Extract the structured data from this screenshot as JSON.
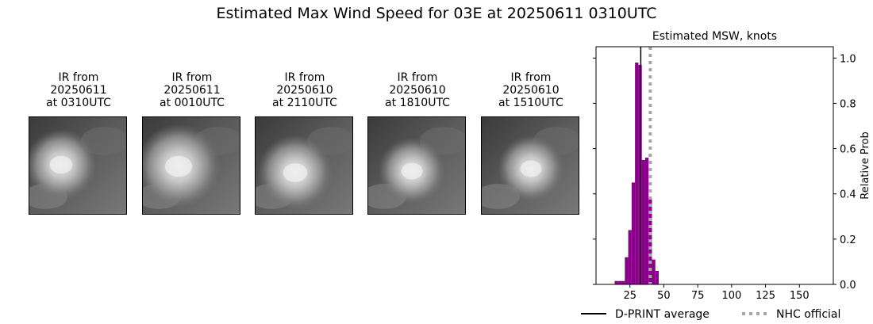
{
  "title": "Estimated Max Wind Speed for 03E at 20250611 0310UTC",
  "ir_panels": [
    {
      "line1": "IR from",
      "line2": "20250611",
      "line3": "at 0310UTC"
    },
    {
      "line1": "IR from",
      "line2": "20250611",
      "line3": "at 0010UTC"
    },
    {
      "line1": "IR from",
      "line2": "20250610",
      "line3": "at 2110UTC"
    },
    {
      "line1": "IR from",
      "line2": "20250610",
      "line3": "at 1810UTC"
    },
    {
      "line1": "IR from",
      "line2": "20250610",
      "line3": "at 1510UTC"
    }
  ],
  "chart_data": {
    "type": "bar",
    "title": "Estimated MSW, knots",
    "ylabel": "Relative Prob",
    "xlim": [
      0,
      175
    ],
    "ylim": [
      0,
      1.05
    ],
    "xticks": [
      25,
      50,
      75,
      100,
      125,
      150
    ],
    "yticks": [
      0.0,
      0.2,
      0.4,
      0.6,
      0.8,
      1.0
    ],
    "ytick_labels": [
      "0.0",
      "0.2",
      "0.4",
      "0.6",
      "0.8",
      "1.0"
    ],
    "yaxis_position": "right",
    "bar_color": "#8b008b",
    "bin_width": 2.5,
    "bins": [
      {
        "x": 15,
        "y": 0.015
      },
      {
        "x": 17.5,
        "y": 0.015
      },
      {
        "x": 20,
        "y": 0.015
      },
      {
        "x": 22.5,
        "y": 0.12
      },
      {
        "x": 25,
        "y": 0.24
      },
      {
        "x": 27.5,
        "y": 0.45
      },
      {
        "x": 30,
        "y": 0.98
      },
      {
        "x": 32.5,
        "y": 0.97
      },
      {
        "x": 35,
        "y": 0.55
      },
      {
        "x": 37.5,
        "y": 0.56
      },
      {
        "x": 40,
        "y": 0.38
      },
      {
        "x": 42.5,
        "y": 0.11
      },
      {
        "x": 45,
        "y": 0.06
      }
    ],
    "dprint_average": 33,
    "nhc_official": 40,
    "legend": [
      {
        "label": "D-PRINT average",
        "style": "solid",
        "color": "#000000"
      },
      {
        "label": "NHC official",
        "style": "dotted",
        "color": "#a6a6a6"
      }
    ],
    "legend_position": "bottom"
  }
}
